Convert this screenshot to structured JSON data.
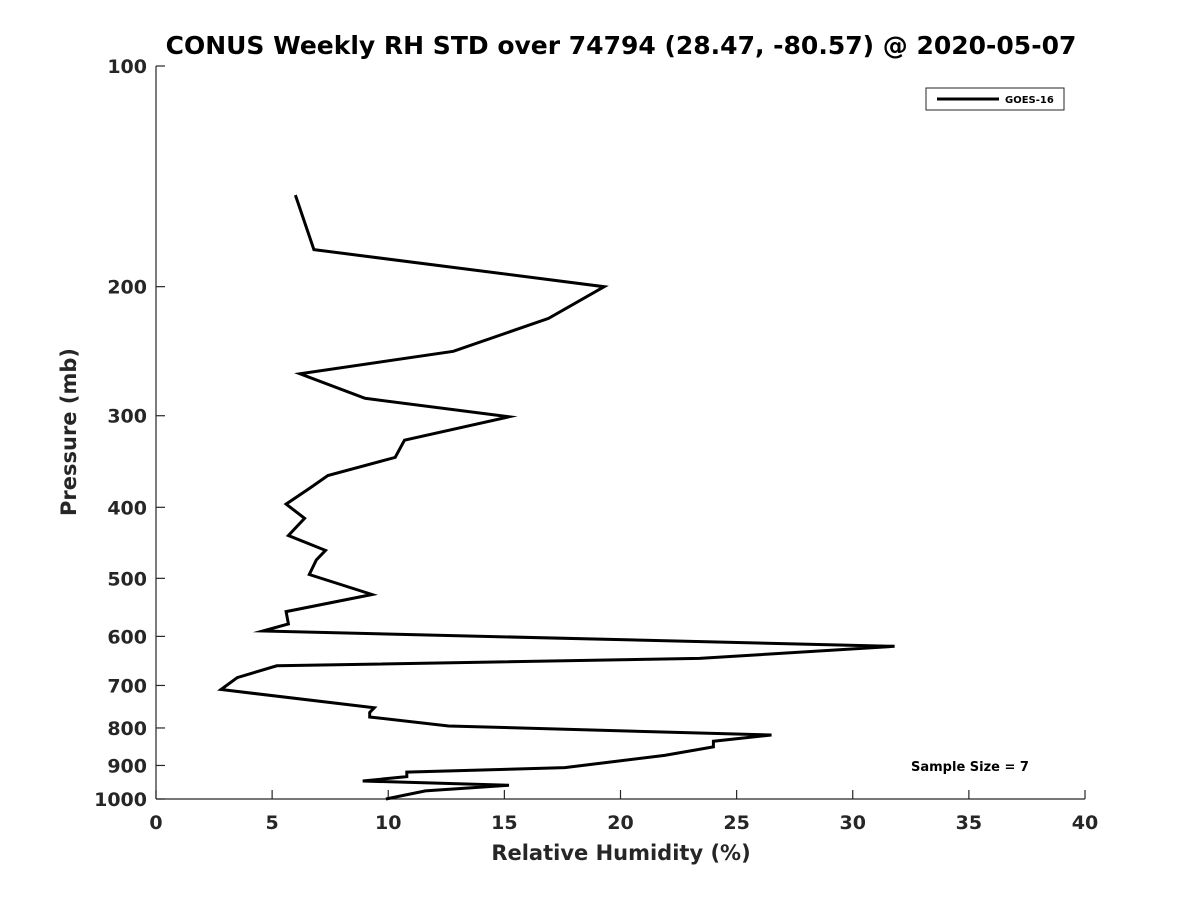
{
  "chart_data": {
    "type": "line",
    "title": "CONUS Weekly RH STD over 74794 (28.47, -80.57) @ 2020-05-07",
    "xlabel": "Relative Humidity (%)",
    "ylabel": "Pressure (mb)",
    "xlim": [
      0,
      40
    ],
    "ylim": [
      1000,
      100
    ],
    "y_scale": "log",
    "y_reversed": true,
    "x_ticks": [
      0,
      5,
      10,
      15,
      20,
      25,
      30,
      35,
      40
    ],
    "y_ticks": [
      100,
      200,
      300,
      400,
      500,
      600,
      700,
      800,
      900,
      1000
    ],
    "grid": false,
    "legend_position": "top-right",
    "series": [
      {
        "name": "GOES-16",
        "color": "#000000",
        "x": [
          6.0,
          6.8,
          19.3,
          16.9,
          12.8,
          6.2,
          9.0,
          15.2,
          10.7,
          10.3,
          7.4,
          6.6,
          5.6,
          6.4,
          5.7,
          7.3,
          6.9,
          6.6,
          9.3,
          5.6,
          5.7,
          4.6,
          31.8,
          23.4,
          5.2,
          3.5,
          2.8,
          9.4,
          9.2,
          9.2,
          12.6,
          26.5,
          24.0,
          24.0,
          21.9,
          17.6,
          10.8,
          10.8,
          8.9,
          15.2,
          11.6,
          9.9
        ],
        "y": [
          150,
          178,
          200,
          221,
          245,
          263,
          284,
          301,
          324,
          342,
          362,
          377,
          396,
          414,
          437,
          458,
          472,
          494,
          526,
          555,
          577,
          590,
          619,
          643,
          658,
          683,
          709,
          751,
          762,
          773,
          795,
          818,
          834,
          849,
          872,
          906,
          919,
          932,
          945,
          958,
          975,
          1000
        ]
      }
    ],
    "annotations": [
      "Sample Size = 7"
    ]
  }
}
